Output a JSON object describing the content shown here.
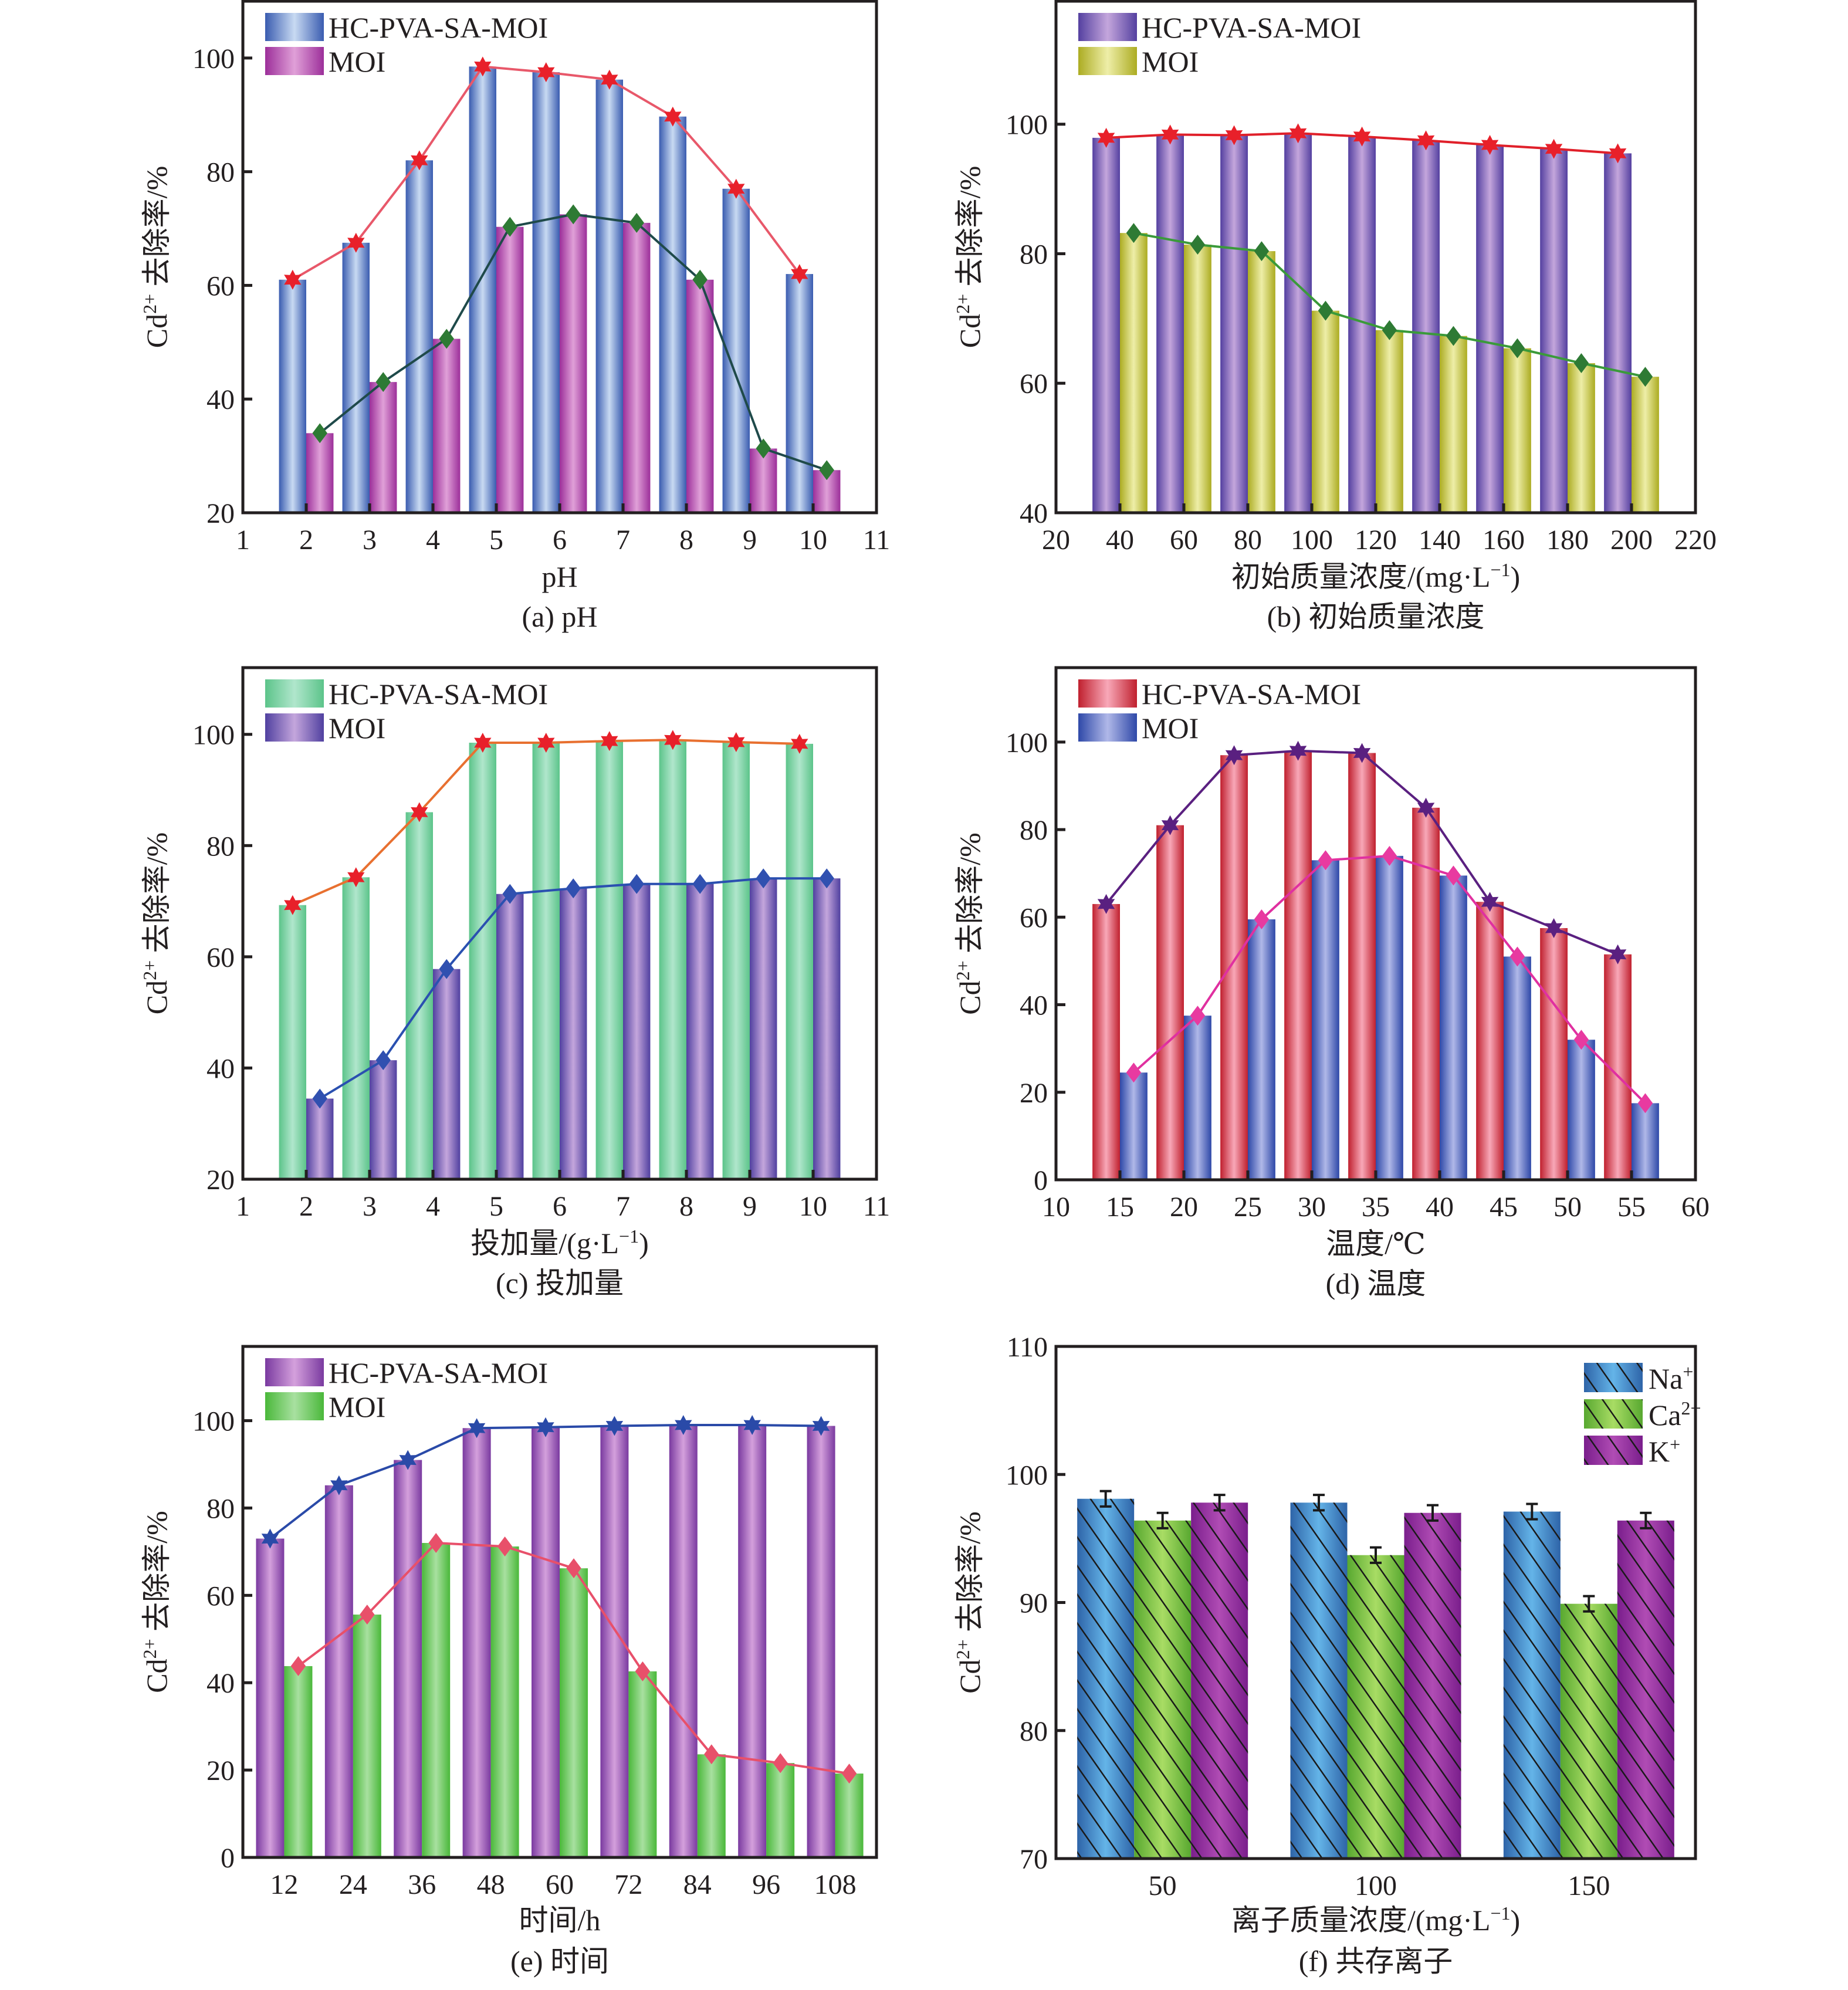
{
  "chart_data": [
    {
      "id": "a",
      "type": "bar",
      "caption": "(a) pH",
      "title": "",
      "xlabel": "pH",
      "ylabel": "Cd²⁺ 去除率/%",
      "ylabel_parts": {
        "base": "Cd",
        "sup": "2+",
        "rest": " 去除率/%"
      },
      "x": [
        2,
        3,
        4,
        5,
        6,
        7,
        8,
        9,
        10
      ],
      "xlim": [
        1,
        11
      ],
      "xticks": [
        1,
        2,
        3,
        4,
        5,
        6,
        7,
        8,
        9,
        10,
        11
      ],
      "ylim": [
        20,
        110
      ],
      "yticks": [
        20,
        40,
        60,
        80,
        100
      ],
      "grid": false,
      "legend_position": "top-left",
      "series": [
        {
          "name": "HC-PVA-SA-MOI",
          "values": [
            61.0,
            67.5,
            82.0,
            98.5,
            97.5,
            96.2,
            89.7,
            77.0,
            62.0
          ],
          "colors": [
            "#3a5cb0",
            "#c8daf2"
          ],
          "line_color": "#e8586a",
          "marker": "star",
          "marker_color": "#e8202a"
        },
        {
          "name": "MOI",
          "values": [
            34.0,
            43.0,
            50.6,
            70.3,
            72.5,
            71.0,
            61.0,
            31.3,
            27.5
          ],
          "colors": [
            "#9c2f9a",
            "#e0a0d8"
          ],
          "line_color": "#1f4a4a",
          "marker": "diamond",
          "marker_color": "#2e7a34"
        }
      ]
    },
    {
      "id": "b",
      "type": "bar",
      "caption": "(b) 初始质量浓度",
      "xlabel": "初始质量浓度/(mg·L⁻¹)",
      "xlabel_parts": {
        "base": "初始质量浓度/(mg·L",
        "sup": "−1",
        "rest": ")"
      },
      "ylabel": "Cd²⁺ 去除率/%",
      "ylabel_parts": {
        "base": "Cd",
        "sup": "2+",
        "rest": " 去除率/%"
      },
      "x": [
        40,
        60,
        80,
        100,
        120,
        140,
        160,
        180,
        200
      ],
      "xlim": [
        20,
        220
      ],
      "xticks": [
        20,
        40,
        60,
        80,
        100,
        120,
        140,
        160,
        180,
        200,
        220
      ],
      "ylim": [
        40,
        119
      ],
      "yticks": [
        40,
        60,
        80,
        100
      ],
      "grid": false,
      "legend_position": "top-left",
      "series": [
        {
          "name": "HC-PVA-SA-MOI",
          "values": [
            97.9,
            98.4,
            98.3,
            98.6,
            98.1,
            97.5,
            96.8,
            96.2,
            95.5
          ],
          "colors": [
            "#5440a0",
            "#c4a6dc"
          ],
          "line_color": "#e0202a",
          "marker": "star",
          "marker_color": "#e8202a"
        },
        {
          "name": "MOI",
          "values": [
            83.2,
            81.4,
            80.4,
            71.2,
            68.2,
            67.3,
            65.4,
            63.1,
            61.0
          ],
          "colors": [
            "#acac22",
            "#eeeea8"
          ],
          "line_color": "#3a9a3a",
          "marker": "diamond",
          "marker_color": "#2e7a34"
        }
      ]
    },
    {
      "id": "c",
      "type": "bar",
      "caption": "(c) 投加量",
      "xlabel": "投加量/(g·L⁻¹)",
      "xlabel_parts": {
        "base": "投加量/(g·L",
        "sup": "−1",
        "rest": ")"
      },
      "ylabel": "Cd²⁺ 去除率/%",
      "ylabel_parts": {
        "base": "Cd",
        "sup": "2+",
        "rest": " 去除率/%"
      },
      "x": [
        2,
        3,
        4,
        5,
        6,
        7,
        8,
        9,
        10
      ],
      "xlim": [
        1,
        11
      ],
      "xticks": [
        1,
        2,
        3,
        4,
        5,
        6,
        7,
        8,
        9,
        10,
        11
      ],
      "ylim": [
        20,
        112
      ],
      "yticks": [
        20,
        40,
        60,
        80,
        100
      ],
      "grid": false,
      "legend_position": "top-left",
      "series": [
        {
          "name": "HC-PVA-SA-MOI",
          "values": [
            69.3,
            74.3,
            86.0,
            98.5,
            98.5,
            98.8,
            99.0,
            98.6,
            98.3
          ],
          "colors": [
            "#5cc48a",
            "#b0e6cc"
          ],
          "line_color": "#e87030",
          "marker": "star",
          "marker_color": "#e8202a"
        },
        {
          "name": "MOI",
          "values": [
            34.5,
            41.4,
            57.8,
            71.3,
            72.3,
            73.1,
            73.1,
            74.1,
            74.1
          ],
          "colors": [
            "#5040a0",
            "#c4a6dc"
          ],
          "line_color": "#2a50b0",
          "marker": "diamond",
          "marker_color": "#3050b0"
        }
      ]
    },
    {
      "id": "d",
      "type": "bar",
      "caption": "(d) 温度",
      "xlabel": "温度/℃",
      "ylabel": "Cd²⁺ 去除率/%",
      "ylabel_parts": {
        "base": "Cd",
        "sup": "2+",
        "rest": " 去除率/%"
      },
      "x": [
        15,
        20,
        25,
        30,
        35,
        40,
        45,
        50,
        55
      ],
      "xlim": [
        10,
        60
      ],
      "xticks": [
        10,
        15,
        20,
        25,
        30,
        35,
        40,
        45,
        50,
        55,
        60
      ],
      "ylim": [
        0,
        117
      ],
      "yticks": [
        0,
        20,
        40,
        60,
        80,
        100
      ],
      "grid": false,
      "legend_position": "top-left",
      "series": [
        {
          "name": "HC-PVA-SA-MOI",
          "values": [
            63.0,
            81.0,
            97.0,
            98.0,
            97.5,
            85.0,
            63.5,
            57.5,
            51.5
          ],
          "colors": [
            "#c0202e",
            "#f8a8b8"
          ],
          "line_color": "#5a2080",
          "marker": "star",
          "marker_color": "#5a2080"
        },
        {
          "name": "MOI",
          "values": [
            24.5,
            37.5,
            59.5,
            73.0,
            74.0,
            69.5,
            51.0,
            32.0,
            17.5
          ],
          "colors": [
            "#2e48a8",
            "#b0b8e8"
          ],
          "line_color": "#e030a0",
          "marker": "diamond",
          "marker_color": "#e83aa0"
        }
      ]
    },
    {
      "id": "e",
      "type": "bar",
      "caption": "(e) 时间",
      "xlabel": "时间/h",
      "ylabel": "Cd²⁺ 去除率/%",
      "ylabel_parts": {
        "base": "Cd",
        "sup": "2+",
        "rest": " 去除率/%"
      },
      "categories": [
        "12",
        "24",
        "36",
        "48",
        "60",
        "72",
        "84",
        "96",
        "108"
      ],
      "ylim": [
        0,
        117
      ],
      "yticks": [
        0,
        20,
        40,
        60,
        80,
        100
      ],
      "grid": false,
      "legend_position": "top-left",
      "series": [
        {
          "name": "HC-PVA-SA-MOI",
          "values": [
            73.0,
            85.2,
            91.0,
            98.3,
            98.5,
            98.8,
            99.0,
            99.0,
            98.8
          ],
          "colors": [
            "#7a3aa0",
            "#d4a0dc"
          ],
          "line_color": "#2a4aa8",
          "marker": "star",
          "marker_color": "#2a4aa8"
        },
        {
          "name": "MOI",
          "values": [
            43.8,
            55.6,
            72.0,
            71.2,
            66.2,
            42.6,
            23.6,
            21.6,
            19.2
          ],
          "colors": [
            "#4ab83a",
            "#a8e0a0"
          ],
          "line_color": "#e8506a",
          "marker": "diamond",
          "marker_color": "#e8506a"
        }
      ]
    },
    {
      "id": "f",
      "type": "bar",
      "caption": "(f) 共存离子",
      "xlabel": "离子质量浓度/(mg·L⁻¹)",
      "xlabel_parts": {
        "base": "离子质量浓度/(mg·L",
        "sup": "−1",
        "rest": ")"
      },
      "ylabel": "Cd²⁺ 去除率/%",
      "ylabel_parts": {
        "base": "Cd",
        "sup": "2+",
        "rest": " 去除率/%"
      },
      "categories": [
        "50",
        "100",
        "150"
      ],
      "ylim": [
        70,
        110
      ],
      "yticks": [
        70,
        80,
        90,
        100,
        110
      ],
      "grid": false,
      "legend_position": "top-right",
      "hatch": "diagonal",
      "series": [
        {
          "name": "Na⁺",
          "name_parts": {
            "base": "Na",
            "sup": "+"
          },
          "values": [
            98.1,
            97.8,
            97.1
          ],
          "errors": [
            0.6,
            0.6,
            0.6
          ],
          "colors": [
            "#2e64a8",
            "#64b4e8"
          ]
        },
        {
          "name": "Ca²⁺",
          "name_parts": {
            "base": "Ca",
            "sup": "2+"
          },
          "values": [
            96.4,
            93.7,
            89.9
          ],
          "errors": [
            0.6,
            0.6,
            0.6
          ],
          "colors": [
            "#58a830",
            "#a8dc64"
          ]
        },
        {
          "name": "K⁺",
          "name_parts": {
            "base": "K",
            "sup": "+"
          },
          "values": [
            97.8,
            97.0,
            96.4
          ],
          "errors": [
            0.6,
            0.6,
            0.6
          ],
          "colors": [
            "#7a1e8c",
            "#b04cb4"
          ]
        }
      ]
    }
  ]
}
